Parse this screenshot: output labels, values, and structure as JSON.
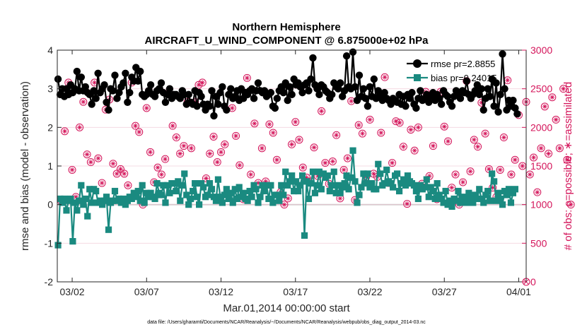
{
  "chart_data": {
    "type": "line",
    "title": "Northern Hemisphere",
    "subtitle": "AIRCRAFT_U_WIND_COMPONENT @ 6.875000e+02 hPa",
    "xlabel": "Mar.01,2014 00:00:00 start",
    "ylabel": "rmse and bias (model - observation)",
    "ylabel_right": "# of obs: o=possible; ∗=assimilated",
    "footnote": "data file: /Users/gharamti/Documents/NCAR/Reanalysis/~/Documents/NCAR/Reanalysis/webpub/obs_diag_output_2014-03.nc",
    "xlim": [
      1.0,
      32.5
    ],
    "ylim": [
      -2,
      4
    ],
    "ylim_right": [
      0,
      3000
    ],
    "x_ticks": [
      2,
      7,
      12,
      17,
      22,
      27,
      32
    ],
    "x_tick_labels": [
      "03/02",
      "03/07",
      "03/12",
      "03/17",
      "03/22",
      "03/27",
      "04/01"
    ],
    "y_ticks": [
      -2,
      -1,
      0,
      1,
      2,
      3,
      4
    ],
    "y_tick_labels": [
      "-2",
      "-1",
      "0",
      "1",
      "2",
      "3",
      "4"
    ],
    "y_ticks_right": [
      0,
      500,
      1000,
      1500,
      2000,
      2500,
      3000
    ],
    "y_tick_labels_right": [
      "0",
      "500",
      "1000",
      "1500",
      "2000",
      "2500",
      "3000"
    ],
    "legend_position": "top-right",
    "series": [
      {
        "name": "rmse pr=2.8855",
        "color": "#000000",
        "values": [
          3.25,
          2.85,
          3.0,
          2.8,
          3.0,
          2.85,
          3.1,
          2.9,
          3.0,
          3.45,
          2.95,
          3.3,
          2.95,
          3.05,
          2.9,
          2.85,
          2.6,
          2.95,
          2.75,
          3.4,
          2.9,
          3.0,
          3.1,
          2.65,
          2.45,
          3.0,
          2.95,
          3.35,
          2.75,
          2.9,
          3.05,
          3.15,
          3.4,
          2.65,
          2.9,
          3.3,
          3.2,
          3.55,
          3.2,
          3.45,
          2.85,
          2.8,
          2.85,
          2.95,
          3.1,
          2.85,
          2.8,
          2.95,
          3.0,
          3.15,
          2.9,
          2.65,
          2.85,
          3.0,
          2.75,
          2.85,
          2.85,
          2.8,
          2.75,
          2.95,
          2.85,
          2.6,
          2.85,
          2.65,
          2.6,
          2.95,
          2.55,
          2.9,
          2.8,
          2.6,
          2.45,
          2.6,
          2.55,
          2.95,
          2.3,
          2.8,
          2.6,
          2.9,
          3.05,
          2.55,
          2.45,
          2.85,
          3.0,
          2.75,
          2.8,
          2.95,
          2.7,
          3.0,
          2.75,
          2.9,
          2.85,
          2.95,
          3.0,
          2.75,
          2.95,
          3.15,
          2.95,
          2.9,
          2.95,
          2.8,
          2.85,
          2.9,
          2.55,
          2.5,
          2.75,
          2.95,
          3.05,
          2.9,
          3.15,
          2.7,
          3.05,
          2.85,
          3.25,
          3.1,
          3.15,
          3.05,
          2.9,
          3.1,
          3.15,
          2.95,
          3.25,
          3.8,
          3.1,
          3.0,
          2.85,
          3.1,
          3.05,
          2.95,
          2.9,
          2.75,
          2.85,
          3.15,
          3.05,
          3.0,
          3.15,
          2.8,
          2.95,
          3.85,
          3.05,
          3.0,
          3.95,
          3.05,
          2.7,
          3.35,
          2.8,
          3.0,
          2.75,
          2.55,
          3.05,
          2.8,
          3.25,
          2.75,
          2.95,
          2.8,
          2.7,
          2.9,
          2.75,
          2.7,
          2.6,
          2.75,
          2.7,
          2.65,
          2.85,
          2.6,
          2.8,
          2.55,
          2.85,
          2.75,
          2.9,
          2.6,
          2.5,
          2.75,
          2.95,
          2.7,
          2.75,
          2.85,
          2.65,
          2.8,
          2.9,
          2.7,
          2.85,
          2.75,
          2.6,
          2.95,
          2.85,
          2.8,
          2.65,
          2.55,
          2.8,
          2.95,
          2.85,
          2.75,
          2.95,
          2.9,
          3.2,
          2.85,
          2.75,
          2.85,
          2.95,
          3.1,
          2.85,
          3.0,
          2.45,
          2.75,
          3.0,
          2.8,
          3.25,
          2.55,
          3.15,
          2.4,
          2.85,
          3.9,
          3.0,
          2.45,
          2.7,
          2.55,
          2.7,
          2.5,
          2.35
        ]
      },
      {
        "name": "bias pr=0.24015",
        "color": "#1a8a80",
        "values": [
          -1.05,
          0.15,
          0.05,
          0.15,
          -0.15,
          0.1,
          0.15,
          -0.95,
          0.05,
          -0.15,
          0.1,
          0.5,
          0.0,
          0.15,
          -0.3,
          0.4,
          0.05,
          0.4,
          0.35,
          0.05,
          0.1,
          0.0,
          0.1,
          0.2,
          -0.65,
          0.05,
          0.1,
          0.35,
          0.1,
          0.15,
          0.05,
          0.15,
          0.0,
          0.1,
          0.2,
          0.15,
          0.3,
          0.2,
          0.35,
          0.1,
          0.5,
          0.05,
          0.3,
          0.2,
          0.3,
          0.2,
          0.15,
          0.55,
          0.3,
          0.25,
          0.5,
          0.05,
          0.5,
          0.3,
          0.55,
          0.55,
          0.35,
          0.6,
          0.1,
          0.5,
          0.8,
          0.25,
          0.0,
          0.15,
          0.35,
          0.55,
          0.2,
          0.0,
          0.55,
          0.45,
          0.2,
          0.25,
          0.55,
          0.4,
          0.2,
          0.1,
          0.65,
          0.2,
          0.05,
          0.25,
          0.4,
          0.15,
          0.3,
          0.05,
          0.4,
          0.15,
          0.45,
          0.2,
          0.3,
          0.15,
          0.1,
          0.35,
          0.2,
          0.5,
          0.4,
          0.05,
          0.2,
          0.5,
          0.35,
          0.5,
          0.15,
          0.5,
          0.05,
          0.25,
          0.25,
          0.1,
          0.5,
          0.25,
          0.85,
          0.5,
          0.6,
          0.75,
          0.35,
          0.6,
          0.35,
          0.5,
          0.75,
          -0.8,
          0.6,
          0.15,
          0.55,
          0.85,
          0.3,
          0.5,
          0.85,
          0.4,
          0.8,
          0.7,
          0.75,
          0.35,
          0.5,
          0.85,
          0.3,
          0.5,
          0.3,
          0.45,
          0.55,
          0.75,
          0.4,
          0.7,
          1.4,
          0.6,
          0.05,
          0.25,
          0.45,
          0.8,
          0.55,
          0.8,
          0.45,
          0.55,
          0.4,
          0.4,
          1.05,
          0.8,
          0.5,
          0.55,
          0.9,
          0.6,
          0.55,
          0.45,
          0.75,
          0.8,
          0.35,
          0.55,
          0.65,
          0.5,
          0.75,
          0.6,
          0.55,
          0.5,
          0.35,
          0.15,
          0.5,
          0.4,
          0.45,
          0.65,
          0.2,
          0.45,
          0.35,
          0.15,
          0.55,
          0.25,
          0.15,
          0.05,
          0.35,
          0.0,
          0.1,
          -0.05,
          0.15,
          0.1,
          0.35,
          0.05,
          0.2,
          0.15,
          0.05,
          0.3,
          0.15,
          0.05,
          0.25,
          0.15,
          0.4,
          0.15,
          0.05,
          0.25,
          0.35,
          0.1,
          0.8,
          0.6,
          0.1,
          0.3,
          0.15,
          0.0,
          0.35,
          0.25,
          0.4,
          0.05,
          0.3,
          0.4
        ]
      }
    ],
    "obs_possible": [
      1050,
      1950,
      2580,
      1450,
      1100,
      2000,
      2330,
      1650,
      1550,
      2580,
      1600,
      1280,
      2230,
      2360,
      1530,
      1400,
      1460,
      1400,
      1250,
      2580,
      2020,
      1940,
      1000,
      2250,
      1680,
      1290,
      1480,
      1390,
      1590,
      2450,
      2020,
      1870,
      1660,
      1760,
      2330,
      1730,
      2330,
      2550,
      2580,
      1340,
      1660,
      1880,
      1550,
      1680,
      1780,
      1140,
      2250,
      1890,
      1510,
      1070,
      2640,
      1390,
      2050,
      1280,
      1730,
      1300,
      2040,
      1930,
      1580,
      1160,
      1000,
      1080,
      1780,
      2070,
      1840,
      1480,
      1350,
      1300,
      1740,
      1370,
      2210,
      1540,
      1270,
      1560,
      1900,
      1080,
      1450,
      1600,
      2340,
      1060,
      2030,
      1920,
      1360,
      2100,
      1400,
      1360,
      1930,
      2650,
      1280,
      1540,
      2080,
      2060,
      1750,
      1010,
      1970,
      1700,
      2000,
      1270,
      2460,
      1370,
      1760,
      1070,
      2460,
      2010,
      1820,
      1220,
      1390,
      1000,
      1290,
      2600,
      1430,
      1840,
      1750,
      2320,
      1920,
      1460,
      1220,
      1100,
      1450,
      1870,
      2610,
      1390,
      1580,
      2160,
      1500,
      2330,
      1390,
      1610,
      1160,
      1730,
      2270,
      1660,
      2390,
      2100,
      1730,
      2500,
      1580,
      1000
    ]
  }
}
